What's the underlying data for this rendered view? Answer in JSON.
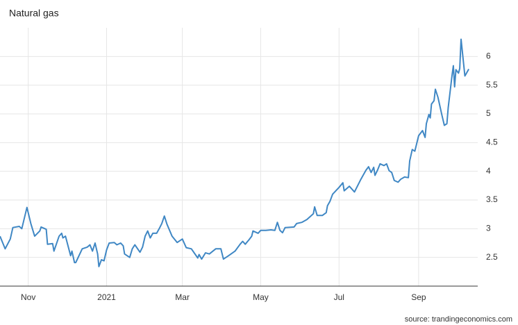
{
  "chart_data": {
    "type": "line",
    "title": "Natural gas",
    "source": "source: trandingeconomics.com",
    "x": [
      0,
      4,
      8,
      10,
      15,
      17,
      21,
      24,
      27,
      31,
      32,
      36,
      37,
      41,
      42,
      46,
      48,
      49,
      51,
      55,
      56,
      58,
      59,
      64,
      68,
      70,
      72,
      74,
      76,
      77,
      79,
      81,
      83,
      85,
      89,
      91,
      94,
      96,
      97,
      101,
      103,
      105,
      109,
      111,
      113,
      115,
      117,
      119,
      122,
      124,
      126,
      128,
      130,
      134,
      138,
      142,
      145,
      149,
      154,
      155,
      157,
      160,
      163,
      168,
      172,
      174,
      178,
      183,
      187,
      189,
      191,
      194,
      196,
      197,
      201,
      203,
      207,
      211,
      214,
      216,
      218,
      220,
      222,
      229,
      231,
      235,
      239,
      244,
      245,
      247,
      251,
      254,
      255,
      257,
      259,
      264,
      267,
      268,
      272,
      276,
      281,
      285,
      287,
      289,
      291,
      292,
      294,
      296,
      299,
      301,
      303,
      305,
      307,
      310,
      312,
      315,
      318,
      319,
      321,
      323,
      326,
      329,
      331,
      332,
      334,
      335,
      336,
      338,
      339,
      341,
      344,
      346,
      348,
      349,
      352,
      353,
      354,
      355,
      357,
      358,
      359,
      361,
      362,
      363,
      365
    ],
    "series": [
      {
        "name": "Natural gas",
        "color": "#3f87c4",
        "values": [
          2.87,
          2.65,
          2.82,
          3.02,
          3.04,
          3.0,
          3.37,
          3.09,
          2.87,
          2.96,
          3.03,
          2.99,
          2.73,
          2.74,
          2.61,
          2.87,
          2.92,
          2.84,
          2.87,
          2.53,
          2.61,
          2.41,
          2.41,
          2.65,
          2.68,
          2.72,
          2.61,
          2.75,
          2.56,
          2.34,
          2.46,
          2.44,
          2.63,
          2.75,
          2.76,
          2.72,
          2.75,
          2.7,
          2.56,
          2.5,
          2.65,
          2.72,
          2.59,
          2.68,
          2.87,
          2.96,
          2.84,
          2.92,
          2.92,
          3.0,
          3.09,
          3.22,
          3.08,
          2.87,
          2.76,
          2.82,
          2.67,
          2.65,
          2.49,
          2.55,
          2.47,
          2.58,
          2.56,
          2.65,
          2.65,
          2.47,
          2.53,
          2.61,
          2.73,
          2.78,
          2.73,
          2.81,
          2.87,
          2.96,
          2.92,
          2.97,
          2.97,
          2.98,
          2.97,
          3.11,
          2.97,
          2.93,
          3.02,
          3.03,
          3.09,
          3.11,
          3.16,
          3.26,
          3.38,
          3.23,
          3.23,
          3.28,
          3.4,
          3.48,
          3.6,
          3.72,
          3.8,
          3.66,
          3.74,
          3.64,
          3.86,
          4.02,
          4.08,
          3.98,
          4.07,
          3.93,
          4.02,
          4.13,
          4.1,
          4.13,
          4.01,
          3.98,
          3.84,
          3.81,
          3.86,
          3.9,
          3.89,
          4.18,
          4.38,
          4.35,
          4.62,
          4.71,
          4.59,
          4.83,
          4.99,
          4.93,
          5.17,
          5.23,
          5.43,
          5.29,
          4.99,
          4.8,
          4.83,
          5.11,
          5.67,
          5.84,
          5.47,
          5.77,
          5.71,
          5.79,
          6.3,
          5.87,
          5.66,
          5.7,
          5.78
        ]
      }
    ],
    "xlim": [
      0,
      372
    ],
    "xticks": [
      {
        "value": 22,
        "label": "Nov"
      },
      {
        "value": 83,
        "label": "2021"
      },
      {
        "value": 142,
        "label": "Mar"
      },
      {
        "value": 203,
        "label": "May"
      },
      {
        "value": 264,
        "label": "Jul"
      },
      {
        "value": 326,
        "label": "Sep"
      }
    ],
    "ylim": [
      2,
      6.5
    ],
    "yticks": [
      2.5,
      3,
      3.5,
      4,
      4.5,
      5,
      5.5,
      6
    ],
    "grid": true
  }
}
